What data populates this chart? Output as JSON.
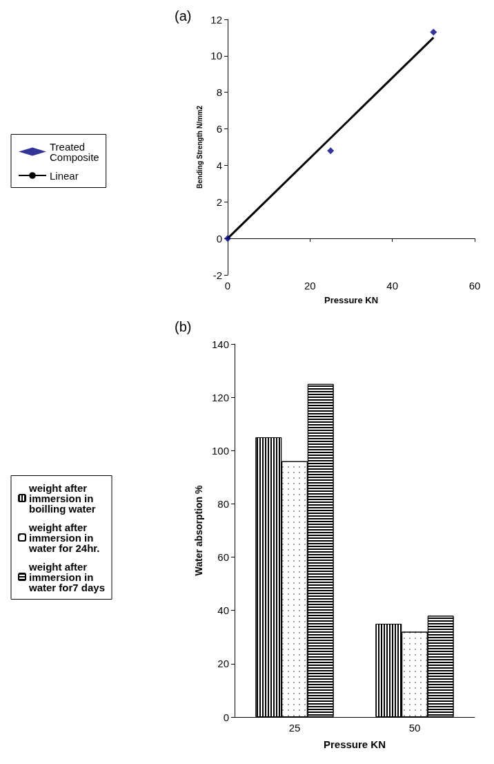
{
  "chart_data": [
    {
      "type": "scatter",
      "title": "(a)",
      "xlabel": "Pressure KN",
      "ylabel": "Bending Strength N/mm2",
      "xlim": [
        0,
        60
      ],
      "xticks": [
        0,
        20,
        40,
        60
      ],
      "ylim": [
        -2,
        12
      ],
      "yticks": [
        -2,
        0,
        2,
        4,
        6,
        8,
        10,
        12
      ],
      "legend": "left",
      "marker": "diamond",
      "series": [
        {
          "name": "Treated Composite",
          "color": "#00007f",
          "x": [
            0,
            25,
            50
          ],
          "values": [
            0,
            4.8,
            11.3
          ]
        },
        {
          "name": "Linear",
          "type": "line",
          "color": "#000000",
          "marker": "none",
          "line_style": "solid",
          "x": [
            0,
            50
          ],
          "values": [
            0,
            11.0
          ]
        }
      ]
    },
    {
      "type": "bar",
      "title": "(b)",
      "xlabel": "Pressure KN",
      "ylabel": "Water absorption %",
      "categories": [
        "25",
        "50"
      ],
      "ylim": [
        0,
        140
      ],
      "yticks": [
        0,
        20,
        40,
        60,
        80,
        100,
        120,
        140
      ],
      "legend": "left",
      "series": [
        {
          "name": "weight after immersion in boilling water",
          "color": "#000000",
          "values": [
            105,
            35
          ]
        },
        {
          "name": "weight after immersion in water for 24hr.",
          "color": "#000000",
          "values": [
            96,
            32
          ]
        },
        {
          "name": "weight after immersion in water for7 days",
          "color": "#000000",
          "values": [
            125,
            38
          ]
        }
      ]
    }
  ]
}
